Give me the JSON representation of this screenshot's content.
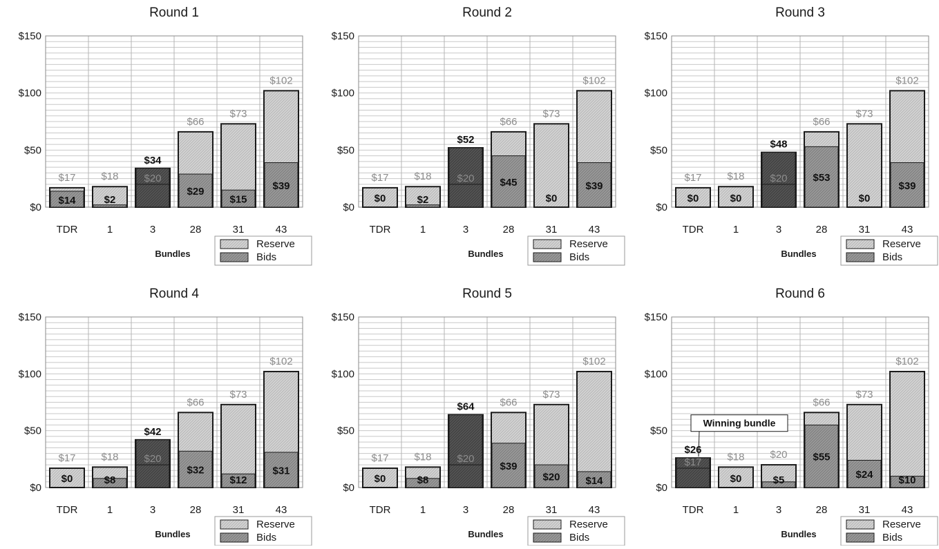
{
  "legend": {
    "reserve_label": "Reserve",
    "bids_label": "Bids"
  },
  "colors": {
    "reserve": "#d0d0d0",
    "bids_light": "#8f8f8f",
    "bids_dark": "#4a4a4a",
    "reserve_label": "#8c8c8c"
  },
  "callout": {
    "text": "Winning bundle"
  },
  "chart_data": [
    {
      "type": "bar",
      "title": "Round 1",
      "xlabel": "Bundles",
      "ylabel": "",
      "categories": [
        "TDR",
        "1",
        "3",
        "28",
        "31",
        "43"
      ],
      "ylim": [
        0,
        150
      ],
      "yticks": [
        "$0",
        "$50",
        "$100",
        "$150"
      ],
      "series": [
        {
          "name": "Reserve",
          "values": [
            17,
            18,
            20,
            66,
            73,
            102
          ]
        },
        {
          "name": "Bids",
          "values": [
            14,
            2,
            34,
            29,
            15,
            39
          ]
        }
      ]
    },
    {
      "type": "bar",
      "title": "Round 2",
      "xlabel": "Bundles",
      "ylabel": "",
      "categories": [
        "TDR",
        "1",
        "3",
        "28",
        "31",
        "43"
      ],
      "ylim": [
        0,
        150
      ],
      "yticks": [
        "$0",
        "$50",
        "$100",
        "$150"
      ],
      "series": [
        {
          "name": "Reserve",
          "values": [
            17,
            18,
            20,
            66,
            73,
            102
          ]
        },
        {
          "name": "Bids",
          "values": [
            0,
            2,
            52,
            45,
            0,
            39
          ]
        }
      ]
    },
    {
      "type": "bar",
      "title": "Round 3",
      "xlabel": "Bundles",
      "ylabel": "",
      "categories": [
        "TDR",
        "1",
        "3",
        "28",
        "31",
        "43"
      ],
      "ylim": [
        0,
        150
      ],
      "yticks": [
        "$0",
        "$50",
        "$100",
        "$150"
      ],
      "series": [
        {
          "name": "Reserve",
          "values": [
            17,
            18,
            20,
            66,
            73,
            102
          ]
        },
        {
          "name": "Bids",
          "values": [
            0,
            0,
            48,
            53,
            0,
            39
          ]
        }
      ]
    },
    {
      "type": "bar",
      "title": "Round 4",
      "xlabel": "Bundles",
      "ylabel": "",
      "categories": [
        "TDR",
        "1",
        "3",
        "28",
        "31",
        "43"
      ],
      "ylim": [
        0,
        150
      ],
      "yticks": [
        "$0",
        "$50",
        "$100",
        "$150"
      ],
      "series": [
        {
          "name": "Reserve",
          "values": [
            17,
            18,
            20,
            66,
            73,
            102
          ]
        },
        {
          "name": "Bids",
          "values": [
            0,
            8,
            42,
            32,
            12,
            31
          ]
        }
      ]
    },
    {
      "type": "bar",
      "title": "Round 5",
      "xlabel": "Bundles",
      "ylabel": "",
      "categories": [
        "TDR",
        "1",
        "3",
        "28",
        "31",
        "43"
      ],
      "ylim": [
        0,
        150
      ],
      "yticks": [
        "$0",
        "$50",
        "$100",
        "$150"
      ],
      "series": [
        {
          "name": "Reserve",
          "values": [
            17,
            18,
            20,
            66,
            73,
            102
          ]
        },
        {
          "name": "Bids",
          "values": [
            0,
            8,
            64,
            39,
            20,
            14
          ]
        }
      ]
    },
    {
      "type": "bar",
      "title": "Round 6",
      "xlabel": "Bundles",
      "ylabel": "",
      "categories": [
        "TDR",
        "1",
        "3",
        "28",
        "31",
        "43"
      ],
      "ylim": [
        0,
        150
      ],
      "yticks": [
        "$0",
        "$50",
        "$100",
        "$150"
      ],
      "series": [
        {
          "name": "Reserve",
          "values": [
            17,
            18,
            20,
            66,
            73,
            102
          ]
        },
        {
          "name": "Bids",
          "values": [
            26,
            0,
            5,
            55,
            24,
            10
          ]
        }
      ],
      "annotation": {
        "text": "Winning bundle",
        "category": "TDR"
      }
    }
  ]
}
